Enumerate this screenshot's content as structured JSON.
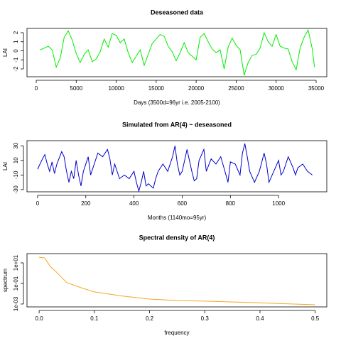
{
  "chart_data": [
    {
      "type": "line",
      "title": "Deseasoned data",
      "xlabel": "Days (3500d=96yr i.e. 2005-2100)",
      "ylabel": "LAI",
      "color": "#00ee00",
      "x": [
        500,
        1000,
        1500,
        2000,
        2500,
        3000,
        3500,
        4000,
        4500,
        5000,
        5500,
        6000,
        6500,
        7000,
        7500,
        8000,
        8500,
        9000,
        9500,
        10000,
        10500,
        11000,
        11500,
        12000,
        12500,
        13000,
        13500,
        14000,
        14500,
        15000,
        15500,
        16000,
        16500,
        17000,
        17500,
        18000,
        18500,
        19000,
        19500,
        20000,
        20500,
        21000,
        21500,
        22000,
        22500,
        23000,
        23500,
        24000,
        24500,
        25000,
        25500,
        26000,
        26500,
        27000,
        27500,
        28000,
        28500,
        29000,
        29500,
        30000,
        30500,
        31000,
        31500,
        32000,
        32500,
        33000,
        33500,
        34000,
        34500,
        34800
      ],
      "values": [
        0.1,
        0.3,
        0.5,
        0.1,
        -1.8,
        -0.8,
        1.5,
        2.2,
        1.2,
        -0.3,
        -1.3,
        -0.4,
        0.1,
        -1.2,
        -0.9,
        -0.1,
        1.3,
        0.4,
        1.9,
        1.7,
        0.9,
        1.3,
        -0.2,
        -1.3,
        -0.6,
        0.1,
        -1.6,
        -0.4,
        0.8,
        1.3,
        1.8,
        1.6,
        0.5,
        -0.1,
        -1.1,
        -0.2,
        0.9,
        -0.2,
        -0.6,
        -1.0,
        1.5,
        1.9,
        1.0,
        0.2,
        -0.2,
        0.1,
        -2.0,
        0.4,
        1.4,
        0.6,
        0.1,
        -2.7,
        -1.3,
        -0.5,
        -0.4,
        0.3,
        2.0,
        1.0,
        0.5,
        1.8,
        0.5,
        0.3,
        0.2,
        -1.2,
        -2.1,
        0.3,
        1.5,
        2.3,
        0.3,
        -1.8
      ],
      "xlim": [
        -1155,
        36335
      ],
      "ylim": [
        -2.86,
        2.47
      ],
      "xticks": [
        0,
        5000,
        10000,
        15000,
        20000,
        25000,
        30000,
        35000
      ],
      "yticks": [
        -2,
        -1,
        0,
        1,
        2
      ]
    },
    {
      "type": "line",
      "title": "Simulated from AR(4) ~ deseasoned",
      "xlabel": "Months (1140mo=95yr)",
      "ylabel": "LAI",
      "color": "#0000cc",
      "x": [
        0,
        20,
        30,
        40,
        50,
        60,
        70,
        80,
        100,
        110,
        120,
        130,
        140,
        150,
        160,
        170,
        180,
        190,
        200,
        210,
        220,
        240,
        250,
        270,
        290,
        300,
        310,
        320,
        340,
        360,
        380,
        400,
        410,
        420,
        430,
        440,
        450,
        460,
        480,
        490,
        500,
        520,
        540,
        560,
        570,
        580,
        590,
        600,
        620,
        640,
        650,
        660,
        670,
        690,
        700,
        720,
        740,
        760,
        780,
        790,
        800,
        820,
        840,
        850,
        860,
        870,
        880,
        900,
        920,
        940,
        950,
        960,
        980,
        1000,
        1010,
        1020,
        1040,
        1060,
        1070,
        1080,
        1100,
        1120,
        1140
      ],
      "values": [
        -2,
        12,
        18,
        5,
        -5,
        8,
        -8,
        5,
        22,
        15,
        -5,
        -20,
        -5,
        -15,
        10,
        -10,
        -25,
        -5,
        5,
        15,
        -10,
        10,
        20,
        15,
        25,
        12,
        -10,
        5,
        -15,
        -10,
        -15,
        -5,
        -20,
        -32,
        -20,
        -5,
        -25,
        -22,
        -28,
        -15,
        -5,
        5,
        -5,
        15,
        30,
        5,
        -10,
        -5,
        25,
        -5,
        -18,
        -15,
        10,
        25,
        -5,
        12,
        5,
        15,
        -8,
        -20,
        8,
        5,
        -10,
        20,
        33,
        15,
        -5,
        -20,
        -5,
        20,
        5,
        -20,
        -5,
        10,
        -10,
        -5,
        15,
        0,
        -10,
        0,
        5,
        -5,
        -10
      ],
      "xlim": [
        -44,
        1200
      ],
      "ylim": [
        -33,
        37
      ],
      "xticks": [
        0,
        200,
        400,
        600,
        800,
        1000
      ],
      "yticks": [
        -30,
        -10,
        10,
        30
      ]
    },
    {
      "type": "line",
      "title": "Spectral density of AR(4)",
      "xlabel": "frequency",
      "ylabel": "spectrum",
      "color": "#f5a623",
      "log_y": true,
      "x": [
        0,
        0.01,
        0.02,
        0.03,
        0.05,
        0.075,
        0.1,
        0.15,
        0.2,
        0.25,
        0.3,
        0.4,
        0.5
      ],
      "values": [
        35,
        30,
        4.5,
        1.5,
        0.12,
        0.04,
        0.015,
        0.006,
        0.003,
        0.0022,
        0.0019,
        0.0013,
        0.00085
      ],
      "xlim": [
        -0.022,
        0.521
      ],
      "ylim": [
        0.000525,
        79
      ],
      "xticks": [
        {
          "value": 0,
          "label": "0.0"
        },
        0.1,
        0.2,
        0.3,
        0.4,
        0.5
      ],
      "yticks": [
        {
          "value": 0.001,
          "label": "1e-03"
        },
        {
          "value": 0.1,
          "label": "1e-01"
        },
        {
          "value": 10,
          "label": "1e+01"
        }
      ]
    }
  ]
}
